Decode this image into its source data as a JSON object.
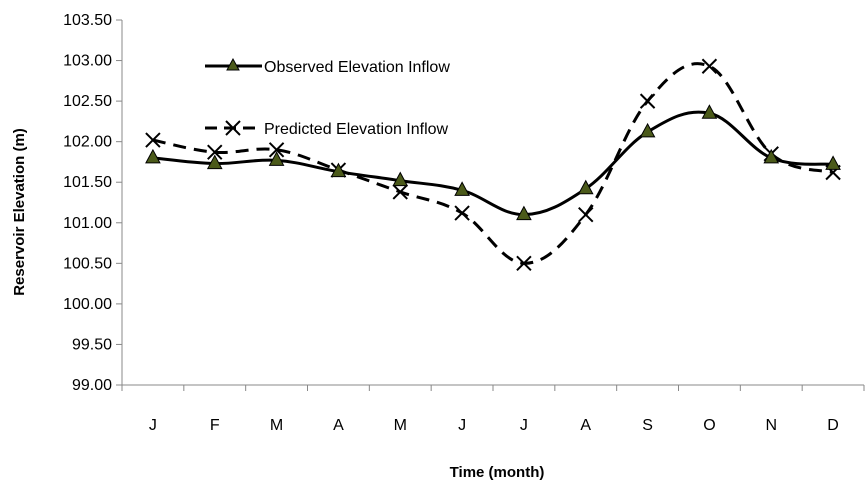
{
  "chart_data": {
    "type": "line",
    "title": "",
    "xlabel": "Time (month)",
    "ylabel": "Reservoir Elevation (m)",
    "categories": [
      "J",
      "F",
      "M",
      "A",
      "M",
      "J",
      "J",
      "A",
      "S",
      "O",
      "N",
      "D"
    ],
    "ylim": [
      99.0,
      103.5
    ],
    "ytick_step": 0.5,
    "grid": false,
    "legend_position": "top-left",
    "series": [
      {
        "name": "Observed Elevation Inflow",
        "style": "solid-smooth",
        "marker": "triangle",
        "color": "#000000",
        "marker_color": "#4b5a1a",
        "values": [
          101.8,
          101.73,
          101.77,
          101.63,
          101.52,
          101.4,
          101.1,
          101.42,
          102.12,
          102.35,
          101.8,
          101.72
        ]
      },
      {
        "name": "Predicted Elevation Inflow",
        "style": "dashed-smooth",
        "marker": "x",
        "color": "#000000",
        "values": [
          102.02,
          101.87,
          101.9,
          101.65,
          101.38,
          101.12,
          100.5,
          101.1,
          102.5,
          102.93,
          101.85,
          101.62
        ]
      }
    ]
  }
}
